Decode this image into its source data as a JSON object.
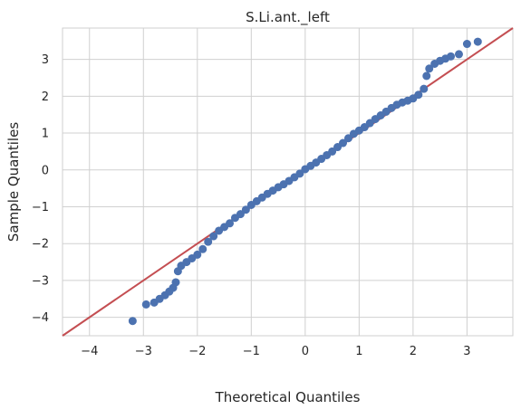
{
  "chart_data": {
    "type": "scatter",
    "title": "S.Li.ant._left",
    "xlabel": "Theoretical Quantiles",
    "ylabel": "Sample Quantiles",
    "xlim": [
      -4.5,
      3.85
    ],
    "ylim": [
      -4.5,
      3.85
    ],
    "grid": true,
    "x_ticks": [
      "−4",
      "−3",
      "−2",
      "−1",
      "0",
      "1",
      "2",
      "3"
    ],
    "y_ticks": [
      "−4",
      "−3",
      "−2",
      "−1",
      "0",
      "1",
      "2",
      "3"
    ],
    "reference_line": {
      "from": [
        -4.5,
        -4.5
      ],
      "to": [
        3.85,
        3.85
      ]
    },
    "colors": {
      "points": "#4c72b0",
      "reference_line": "#c44e52",
      "grid": "#d0d0d0",
      "text": "#262626"
    },
    "points": [
      {
        "x": -3.2,
        "y": -4.1
      },
      {
        "x": -2.95,
        "y": -3.65
      },
      {
        "x": -2.8,
        "y": -3.6
      },
      {
        "x": -2.7,
        "y": -3.5
      },
      {
        "x": -2.6,
        "y": -3.4
      },
      {
        "x": -2.52,
        "y": -3.3
      },
      {
        "x": -2.45,
        "y": -3.2
      },
      {
        "x": -2.4,
        "y": -3.05
      },
      {
        "x": -2.36,
        "y": -2.75
      },
      {
        "x": -2.3,
        "y": -2.6
      },
      {
        "x": -2.2,
        "y": -2.5
      },
      {
        "x": -2.1,
        "y": -2.4
      },
      {
        "x": -2.0,
        "y": -2.3
      },
      {
        "x": -1.9,
        "y": -2.15
      },
      {
        "x": -1.8,
        "y": -1.95
      },
      {
        "x": -1.7,
        "y": -1.8
      },
      {
        "x": -1.6,
        "y": -1.65
      },
      {
        "x": -1.5,
        "y": -1.55
      },
      {
        "x": -1.4,
        "y": -1.45
      },
      {
        "x": -1.3,
        "y": -1.3
      },
      {
        "x": -1.2,
        "y": -1.2
      },
      {
        "x": -1.1,
        "y": -1.08
      },
      {
        "x": -1.0,
        "y": -0.95
      },
      {
        "x": -0.9,
        "y": -0.85
      },
      {
        "x": -0.8,
        "y": -0.75
      },
      {
        "x": -0.7,
        "y": -0.65
      },
      {
        "x": -0.6,
        "y": -0.56
      },
      {
        "x": -0.5,
        "y": -0.47
      },
      {
        "x": -0.4,
        "y": -0.39
      },
      {
        "x": -0.3,
        "y": -0.3
      },
      {
        "x": -0.2,
        "y": -0.2
      },
      {
        "x": -0.1,
        "y": -0.1
      },
      {
        "x": 0.0,
        "y": 0.02
      },
      {
        "x": 0.1,
        "y": 0.11
      },
      {
        "x": 0.2,
        "y": 0.2
      },
      {
        "x": 0.3,
        "y": 0.3
      },
      {
        "x": 0.4,
        "y": 0.4
      },
      {
        "x": 0.5,
        "y": 0.5
      },
      {
        "x": 0.6,
        "y": 0.62
      },
      {
        "x": 0.7,
        "y": 0.73
      },
      {
        "x": 0.8,
        "y": 0.86
      },
      {
        "x": 0.9,
        "y": 0.98
      },
      {
        "x": 1.0,
        "y": 1.07
      },
      {
        "x": 1.1,
        "y": 1.16
      },
      {
        "x": 1.2,
        "y": 1.27
      },
      {
        "x": 1.3,
        "y": 1.38
      },
      {
        "x": 1.4,
        "y": 1.48
      },
      {
        "x": 1.5,
        "y": 1.58
      },
      {
        "x": 1.6,
        "y": 1.68
      },
      {
        "x": 1.7,
        "y": 1.77
      },
      {
        "x": 1.8,
        "y": 1.83
      },
      {
        "x": 1.9,
        "y": 1.88
      },
      {
        "x": 2.0,
        "y": 1.94
      },
      {
        "x": 2.1,
        "y": 2.04
      },
      {
        "x": 2.2,
        "y": 2.2
      },
      {
        "x": 2.25,
        "y": 2.55
      },
      {
        "x": 2.3,
        "y": 2.75
      },
      {
        "x": 2.4,
        "y": 2.88
      },
      {
        "x": 2.5,
        "y": 2.96
      },
      {
        "x": 2.6,
        "y": 3.02
      },
      {
        "x": 2.7,
        "y": 3.08
      },
      {
        "x": 2.85,
        "y": 3.14
      },
      {
        "x": 3.0,
        "y": 3.42
      },
      {
        "x": 3.2,
        "y": 3.48
      }
    ]
  }
}
